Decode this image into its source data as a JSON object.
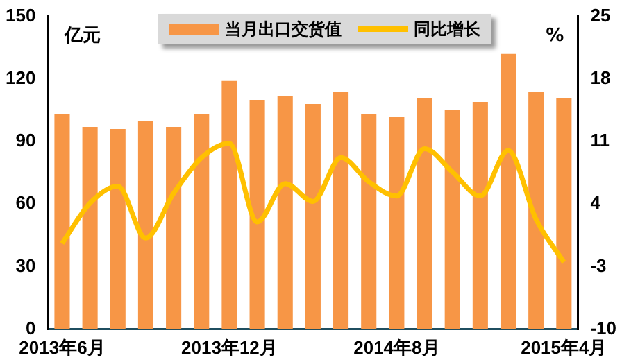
{
  "chart_data": {
    "type": "bar",
    "categories": [
      "2013年6月",
      null,
      null,
      null,
      null,
      null,
      "2013年12月",
      null,
      null,
      null,
      null,
      null,
      "2014年8月",
      null,
      null,
      null,
      null,
      null,
      "2015年4月"
    ],
    "series": [
      {
        "name": "当月出口交货值",
        "color": "#f79646",
        "values": [
          103,
          97,
          96,
          100,
          97,
          103,
          119,
          110,
          112,
          108,
          114,
          103,
          102,
          111,
          105,
          109,
          132,
          114,
          111
        ]
      },
      {
        "name": "同比增长",
        "type": "line",
        "axis": "y2",
        "color": "#ffc000",
        "values": [
          -0.4,
          4.1,
          6.0,
          0.2,
          5.2,
          9.2,
          10.8,
          2.0,
          6.3,
          4.3,
          9.2,
          6.5,
          4.9,
          10.2,
          7.6,
          4.9,
          10.0,
          2.3,
          -2.5
        ]
      }
    ],
    "ylim": [
      0,
      150
    ],
    "yticks": [
      0,
      30,
      60,
      90,
      120,
      150
    ],
    "y2lim": [
      -10,
      25
    ],
    "y2ticks": [
      -10,
      -3,
      4,
      11,
      18,
      25
    ],
    "annotations": [
      "亿元",
      "%"
    ],
    "legend": "top",
    "grid": false,
    "marker": "none"
  }
}
